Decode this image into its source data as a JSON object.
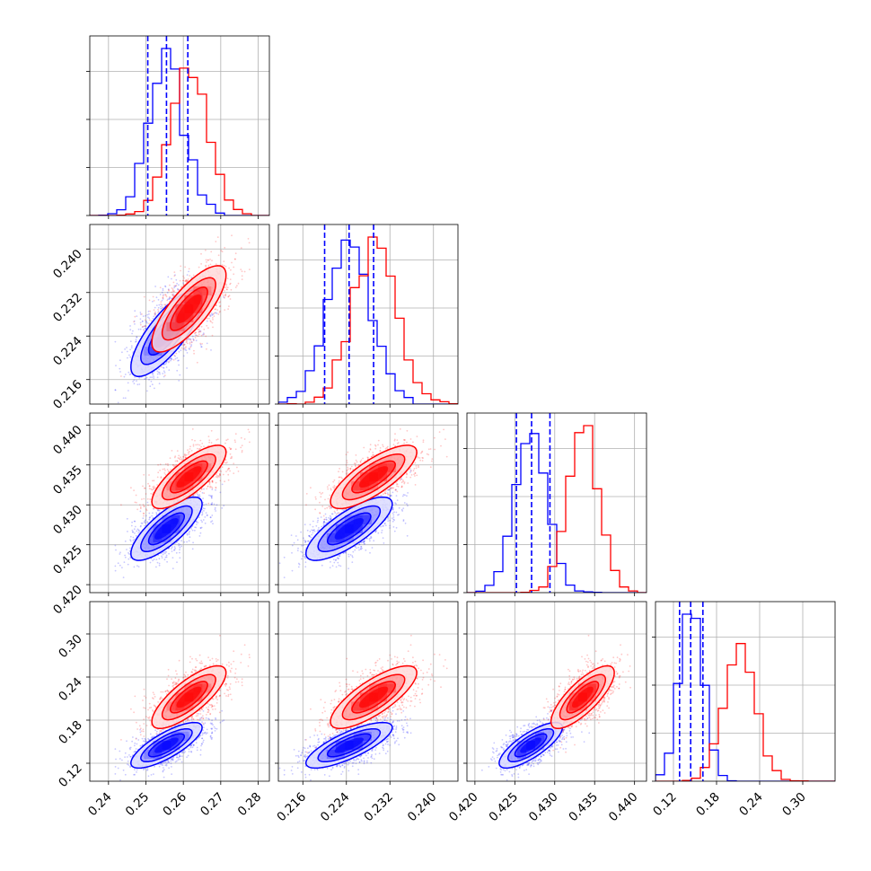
{
  "colors": {
    "series_a": "#0000ff",
    "series_b": "#ff0000",
    "grid": "#b0b0b0",
    "frame": "#000000"
  },
  "chart_data": {
    "type": "corner",
    "parameters": [
      {
        "range": [
          0.235,
          0.283
        ],
        "ticks": [
          0.24,
          0.25,
          0.26,
          0.27,
          0.28
        ],
        "tick_labels": [
          "0.24",
          "0.25",
          "0.26",
          "0.27",
          "0.28"
        ],
        "axis_labels_shown": [
          "x"
        ]
      },
      {
        "range": [
          0.2115,
          0.2445
        ],
        "ticks": [
          0.216,
          0.224,
          0.232,
          0.24
        ],
        "tick_labels": [
          "0.216",
          "0.224",
          "0.232",
          "0.240"
        ],
        "axis_labels_shown": [
          "x",
          "y"
        ]
      },
      {
        "range": [
          0.419,
          0.4415
        ],
        "ticks": [
          0.42,
          0.425,
          0.43,
          0.435,
          0.44
        ],
        "tick_labels": [
          "0.420",
          "0.425",
          "0.430",
          "0.435",
          "0.440"
        ],
        "axis_labels_shown": [
          "x",
          "y"
        ]
      },
      {
        "range": [
          0.095,
          0.345
        ],
        "ticks": [
          0.12,
          0.18,
          0.24,
          0.3
        ],
        "tick_labels": [
          "0.12",
          "0.18",
          "0.24",
          "0.30"
        ],
        "axis_labels_shown": [
          "x",
          "y"
        ]
      }
    ],
    "series": [
      {
        "color": "#0000ff",
        "mean": [
          0.2555,
          0.2245,
          0.427,
          0.145
        ],
        "std": [
          0.0048,
          0.004,
          0.002,
          0.016
        ],
        "quantiles": [
          [
            0.2505,
            0.2555,
            0.2612
          ],
          [
            0.22,
            0.2245,
            0.229
          ],
          [
            0.4252,
            0.4271,
            0.4294
          ],
          [
            0.1285,
            0.144,
            0.161
          ]
        ]
      },
      {
        "color": "#ff0000",
        "mean": [
          0.2615,
          0.229,
          0.4335,
          0.212
        ],
        "std": [
          0.005,
          0.004,
          0.002,
          0.022
        ],
        "quantiles": null
      }
    ],
    "grid": true,
    "legend": "none",
    "title": ""
  }
}
